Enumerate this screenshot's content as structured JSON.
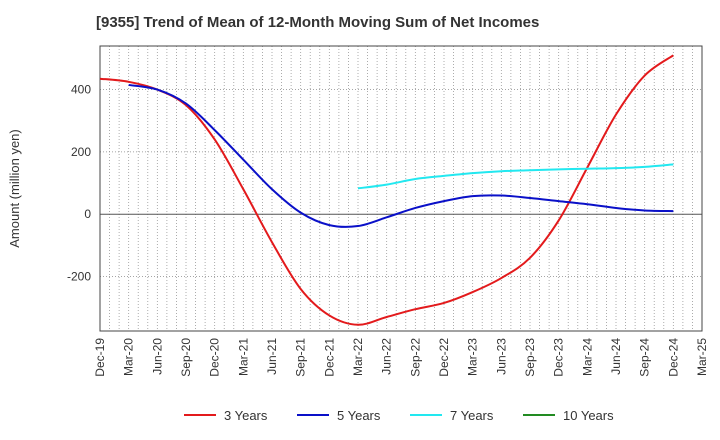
{
  "chart_data": {
    "type": "line",
    "title": "[9355]  Trend of Mean of 12-Month Moving Sum of Net Incomes",
    "xlabel": "",
    "ylabel": "Amount (million yen)",
    "ylim": [
      -375,
      540
    ],
    "yticks": [
      400,
      200,
      0,
      -200
    ],
    "ytick_labels": [
      "400",
      "200",
      "0",
      "-200"
    ],
    "grid": true,
    "legend_position": "bottom",
    "categories": [
      "Dec-19",
      "Mar-20",
      "Jun-20",
      "Sep-20",
      "Dec-20",
      "Mar-21",
      "Jun-21",
      "Sep-21",
      "Dec-21",
      "Mar-22",
      "Jun-22",
      "Sep-22",
      "Dec-22",
      "Mar-23",
      "Jun-23",
      "Sep-23",
      "Dec-23",
      "Mar-24",
      "Jun-24",
      "Sep-24",
      "Dec-24",
      "Mar-25"
    ],
    "series": [
      {
        "name": "3 Years",
        "color": "#e31a1c",
        "x": [
          "Dec-19",
          "Mar-20",
          "Jun-20",
          "Sep-20",
          "Dec-20",
          "Mar-21",
          "Jun-21",
          "Sep-21",
          "Dec-21",
          "Mar-22",
          "Jun-22",
          "Sep-22",
          "Dec-22",
          "Mar-23",
          "Jun-23",
          "Sep-23",
          "Dec-23",
          "Mar-24",
          "Jun-24",
          "Sep-24",
          "Dec-24"
        ],
        "values": [
          435,
          425,
          400,
          350,
          240,
          80,
          -90,
          -240,
          -325,
          -355,
          -330,
          -305,
          -285,
          -250,
          -205,
          -140,
          -20,
          150,
          320,
          445,
          510
        ]
      },
      {
        "name": "5 Years",
        "color": "#0a10c8",
        "x": [
          "Mar-20",
          "Jun-20",
          "Sep-20",
          "Dec-20",
          "Mar-21",
          "Jun-21",
          "Sep-21",
          "Dec-21",
          "Mar-22",
          "Jun-22",
          "Sep-22",
          "Dec-22",
          "Mar-23",
          "Jun-23",
          "Sep-23",
          "Dec-23",
          "Mar-24",
          "Jun-24",
          "Sep-24",
          "Dec-24"
        ],
        "values": [
          415,
          400,
          355,
          270,
          175,
          80,
          5,
          -35,
          -38,
          -10,
          20,
          42,
          58,
          60,
          52,
          42,
          32,
          20,
          12,
          10
        ]
      },
      {
        "name": "7 Years",
        "color": "#22e8f0",
        "x": [
          "Mar-22",
          "Jun-22",
          "Sep-22",
          "Dec-22",
          "Mar-23",
          "Jun-23",
          "Sep-23",
          "Dec-23",
          "Mar-24",
          "Jun-24",
          "Sep-24",
          "Dec-24"
        ],
        "values": [
          83,
          95,
          113,
          123,
          132,
          138,
          141,
          144,
          146,
          148,
          152,
          160
        ]
      },
      {
        "name": "10 Years",
        "color": "#228b22",
        "x": [],
        "values": []
      }
    ]
  }
}
